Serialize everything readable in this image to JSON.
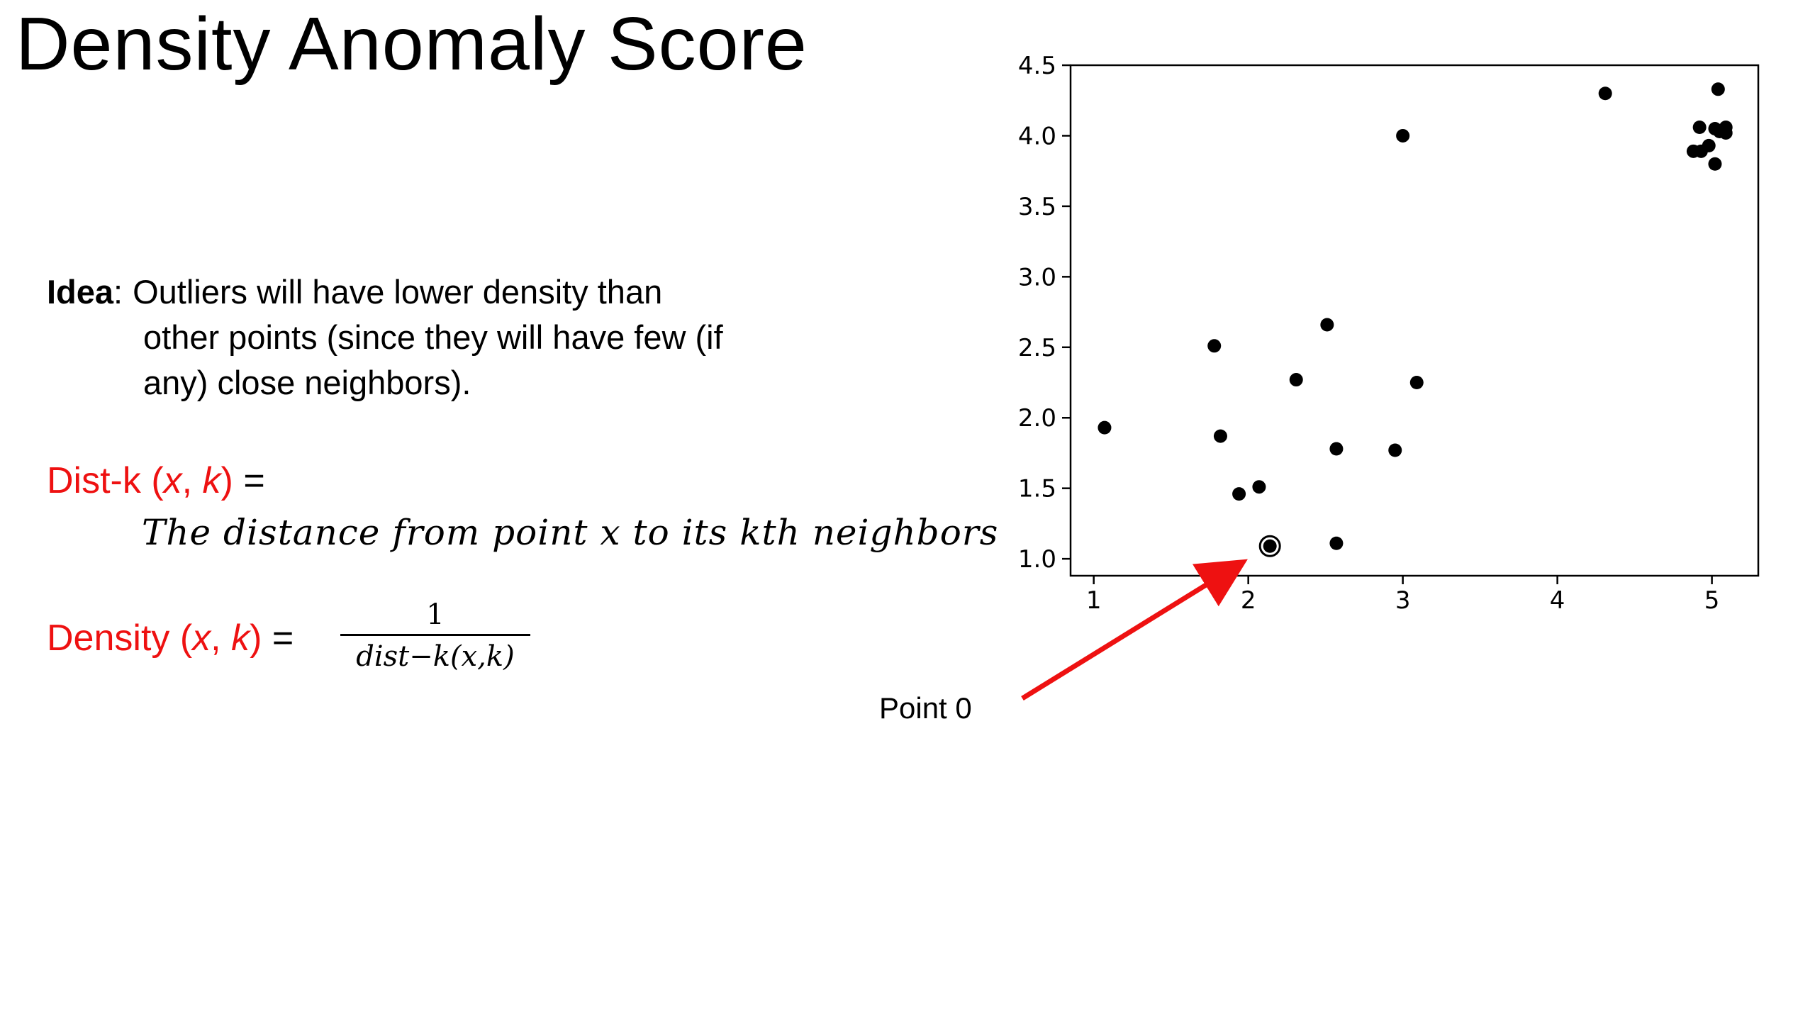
{
  "slide": {
    "title": "Density Anomaly Score",
    "idea": {
      "label": "Idea",
      "colon": ":",
      "line1": "Outliers will have lower density than",
      "line2": "other points (since they will have few (if",
      "line3": "any) close neighbors)."
    },
    "dist_k": {
      "name": "Dist-k",
      "open": " (",
      "x": "x",
      "comma": ", ",
      "k": "k",
      "close": ")",
      "equals": " =",
      "definition": "The distance from point x to its kth neighbors"
    },
    "density": {
      "name": "Density",
      "open": " (",
      "x": "x",
      "comma": ", ",
      "k": "k",
      "close": ")",
      "equals": " =",
      "numerator": "1",
      "denominator": "dist−k(x,k)"
    },
    "annotation": {
      "label": "Point 0",
      "arrow_color": "#ee1111"
    }
  },
  "chart_data": {
    "type": "scatter",
    "title": "",
    "xlabel": "",
    "ylabel": "",
    "xlim": [
      0.85,
      5.3
    ],
    "ylim": [
      0.88,
      4.5
    ],
    "xticks": [
      1,
      2,
      3,
      4,
      5
    ],
    "xtick_labels": [
      "1",
      "2",
      "3",
      "4",
      "5"
    ],
    "yticks": [
      1.0,
      1.5,
      2.0,
      2.5,
      3.0,
      3.5,
      4.0,
      4.5
    ],
    "ytick_labels": [
      "1.0",
      "1.5",
      "2.0",
      "2.5",
      "3.0",
      "3.5",
      "4.0",
      "4.5"
    ],
    "grid": false,
    "point_color": "#000000",
    "highlighted_index": 0,
    "points": [
      {
        "x": 2.14,
        "y": 1.09
      },
      {
        "x": 1.07,
        "y": 1.93
      },
      {
        "x": 1.78,
        "y": 2.51
      },
      {
        "x": 1.82,
        "y": 1.87
      },
      {
        "x": 1.94,
        "y": 1.46
      },
      {
        "x": 2.07,
        "y": 1.51
      },
      {
        "x": 2.31,
        "y": 2.27
      },
      {
        "x": 2.51,
        "y": 2.66
      },
      {
        "x": 2.57,
        "y": 1.78
      },
      {
        "x": 2.57,
        "y": 1.11
      },
      {
        "x": 2.95,
        "y": 1.77
      },
      {
        "x": 3.0,
        "y": 4.0
      },
      {
        "x": 3.09,
        "y": 2.25
      },
      {
        "x": 4.31,
        "y": 4.3
      },
      {
        "x": 5.04,
        "y": 4.33
      },
      {
        "x": 4.92,
        "y": 4.06
      },
      {
        "x": 5.02,
        "y": 4.05
      },
      {
        "x": 5.09,
        "y": 4.06
      },
      {
        "x": 5.09,
        "y": 4.02
      },
      {
        "x": 5.05,
        "y": 4.03
      },
      {
        "x": 4.98,
        "y": 3.93
      },
      {
        "x": 4.93,
        "y": 3.89
      },
      {
        "x": 4.88,
        "y": 3.89
      },
      {
        "x": 5.02,
        "y": 3.8
      }
    ]
  }
}
